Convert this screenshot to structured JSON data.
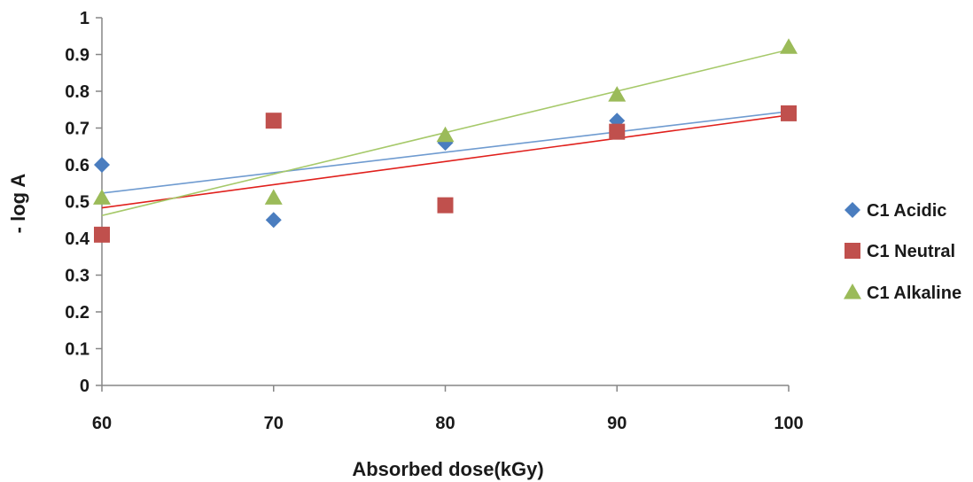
{
  "chart_data": {
    "type": "scatter",
    "title": "",
    "xlabel": "Absorbed dose(kGy)",
    "ylabel": "- log A",
    "xlim": [
      60,
      100
    ],
    "ylim": [
      0,
      1
    ],
    "x_ticks": [
      "60",
      "70",
      "80",
      "90",
      "100"
    ],
    "y_ticks": [
      "0",
      "0.1",
      "0.2",
      "0.3",
      "0.4",
      "0.5",
      "0.6",
      "0.7",
      "0.8",
      "0.9",
      "1"
    ],
    "grid": false,
    "legend_position": "right",
    "series": [
      {
        "name": "C1 Acidic",
        "marker": "diamond",
        "color": "#4a7dbf",
        "trendline_color": "#6f9bd0",
        "points": [
          {
            "x": 60,
            "y": 0.6
          },
          {
            "x": 70,
            "y": 0.45
          },
          {
            "x": 80,
            "y": 0.66
          },
          {
            "x": 90,
            "y": 0.72
          },
          {
            "x": 100,
            "y": 0.74
          }
        ],
        "trendline": {
          "x_start": 60,
          "y_start": 0.523,
          "x_end": 100,
          "y_end": 0.745
        }
      },
      {
        "name": "C1 Neutral",
        "marker": "square",
        "color": "#c0504d",
        "trendline_color": "#e0201c",
        "points": [
          {
            "x": 60,
            "y": 0.41
          },
          {
            "x": 70,
            "y": 0.72
          },
          {
            "x": 80,
            "y": 0.49
          },
          {
            "x": 90,
            "y": 0.69
          },
          {
            "x": 100,
            "y": 0.74
          }
        ],
        "trendline": {
          "x_start": 60,
          "y_start": 0.483,
          "x_end": 100,
          "y_end": 0.735
        }
      },
      {
        "name": "C1 Alkaline",
        "marker": "triangle",
        "color": "#9bbb59",
        "trendline_color": "#a6c96a",
        "points": [
          {
            "x": 60,
            "y": 0.51
          },
          {
            "x": 70,
            "y": 0.51
          },
          {
            "x": 80,
            "y": 0.68
          },
          {
            "x": 90,
            "y": 0.79
          },
          {
            "x": 100,
            "y": 0.92
          }
        ],
        "trendline": {
          "x_start": 60,
          "y_start": 0.462,
          "x_end": 100,
          "y_end": 0.913
        }
      }
    ]
  }
}
